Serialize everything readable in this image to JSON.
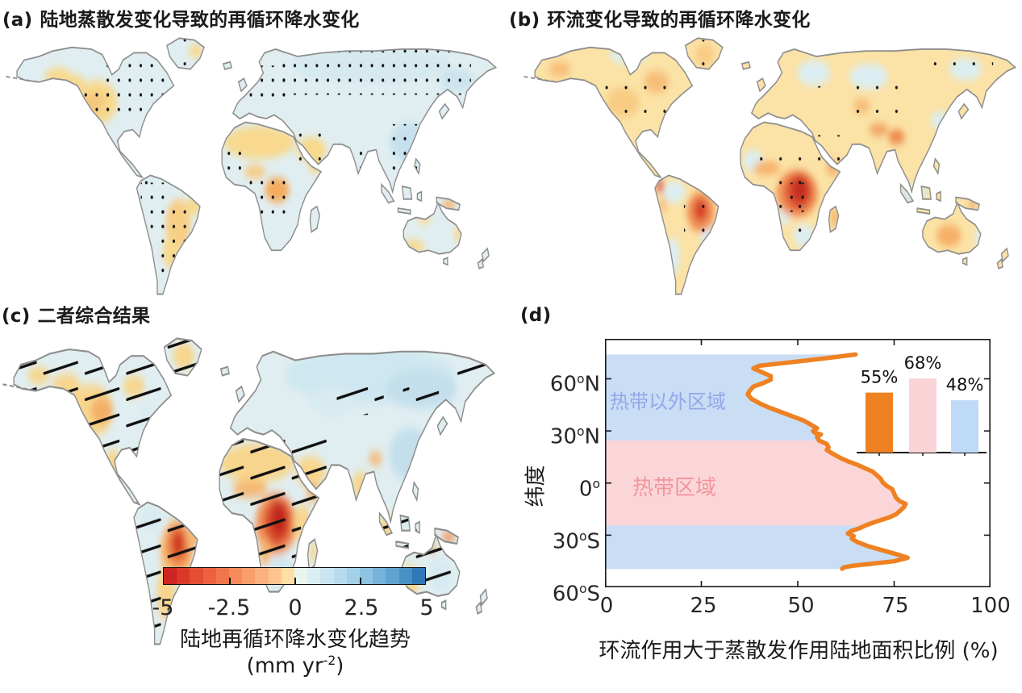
{
  "panels": {
    "a": {
      "label": "(a)",
      "title": "陆地蒸散发变化导致的再循环降水变化"
    },
    "b": {
      "label": "(b)",
      "title": "环流变化导致的再循环降水变化"
    },
    "c": {
      "label": "(c)",
      "title": "二者综合结果"
    },
    "d": {
      "label": "(d)"
    }
  },
  "colorbar": {
    "tick_labels": [
      "-5",
      "-2.5",
      "0",
      "2.5",
      "5"
    ],
    "title": "陆地再循环降水变化趋势",
    "units_prefix": "(mm yr",
    "units_sup": "-2",
    "units_suffix": ")"
  },
  "panel_d": {
    "ylabel": "纬度",
    "xlabel": "环流作用大于蒸散发作用陆地面积比例 (%)",
    "x_tick_labels": [
      "0",
      "25",
      "50",
      "75",
      "100"
    ],
    "y_tick_labels": [
      {
        "value": "60",
        "sup": "o",
        "hem": "N"
      },
      {
        "value": "30",
        "sup": "o",
        "hem": "N"
      },
      {
        "value": "0",
        "sup": "o",
        "hem": ""
      },
      {
        "value": "30",
        "sup": "o",
        "hem": "S"
      },
      {
        "value": "60",
        "sup": "o",
        "hem": "S"
      }
    ],
    "region_labels": {
      "extratropics": "热带以外区域",
      "tropics": "热带区域"
    },
    "bar_labels": [
      "55%",
      "68%",
      "48%"
    ]
  },
  "chart_data": [
    {
      "id": "land-recycled-precip-trend-colorbar",
      "type": "heatmap",
      "title": "陆地再循环降水变化趋势 (mm yr^-2)",
      "range": [
        -5,
        5
      ],
      "tick_values": [
        -5,
        -2.5,
        0,
        2.5,
        5
      ],
      "colors": [
        "#CD2522",
        "#DA392A",
        "#E44E32",
        "#EC623E",
        "#F1764B",
        "#F68A5B",
        "#F99D6C",
        "#FBB07E",
        "#FDC490",
        "#FEDFA6",
        "#EAF5EE",
        "#DAEEF4",
        "#C9E5F1",
        "#B7DBEE",
        "#A3D1E8",
        "#8EC4E1",
        "#77B4D9",
        "#60A3D0",
        "#488FC4",
        "#3078B6"
      ]
    },
    {
      "id": "circulation-vs-evap-latitude-profile",
      "type": "line",
      "xlabel": "环流作用大于蒸散发作用陆地面积比例 (%)",
      "ylabel": "纬度",
      "xlim": [
        0,
        100
      ],
      "x_ticks": [
        0,
        25,
        50,
        75,
        100
      ],
      "y_tick_lats": [
        60,
        30,
        0,
        -30,
        -60
      ],
      "lat_axis_range": [
        83,
        -60
      ],
      "line_color": "#EE8122",
      "points": [
        [
          65,
          74
        ],
        [
          56,
          71.5
        ],
        [
          46,
          69
        ],
        [
          40,
          67.5
        ],
        [
          38.5,
          66
        ],
        [
          40.5,
          64
        ],
        [
          43,
          61.5
        ],
        [
          43,
          59.5
        ],
        [
          41,
          57.5
        ],
        [
          38.5,
          55.5
        ],
        [
          37.5,
          53
        ],
        [
          37,
          51
        ],
        [
          38,
          48.5
        ],
        [
          40,
          46
        ],
        [
          42.5,
          43.5
        ],
        [
          45.5,
          41
        ],
        [
          48.5,
          38.5
        ],
        [
          51.5,
          36
        ],
        [
          53.5,
          33.5
        ],
        [
          55,
          31.5
        ],
        [
          54,
          30
        ],
        [
          54.5,
          28.8
        ],
        [
          56,
          28
        ],
        [
          55,
          26.5
        ],
        [
          55.5,
          24.5
        ],
        [
          57.5,
          22.5
        ],
        [
          58,
          20.5
        ],
        [
          57.5,
          19
        ],
        [
          59,
          17
        ],
        [
          61,
          14.5
        ],
        [
          63,
          12.5
        ],
        [
          65.5,
          10.5
        ],
        [
          67.5,
          8.5
        ],
        [
          69.5,
          6.5
        ],
        [
          70.5,
          4.5
        ],
        [
          71.5,
          2.5
        ],
        [
          72,
          0.5
        ],
        [
          73,
          -1.5
        ],
        [
          74.5,
          -3.5
        ],
        [
          75,
          -6
        ],
        [
          75.5,
          -8.5
        ],
        [
          76.5,
          -10.5
        ],
        [
          78,
          -12
        ],
        [
          77.5,
          -14
        ],
        [
          76.5,
          -16
        ],
        [
          75.5,
          -18
        ],
        [
          73.5,
          -20
        ],
        [
          70.5,
          -22
        ],
        [
          68,
          -24
        ],
        [
          66,
          -26
        ],
        [
          64,
          -27.5
        ],
        [
          63,
          -29
        ],
        [
          64.5,
          -30.5
        ],
        [
          64,
          -32
        ],
        [
          65.5,
          -34
        ],
        [
          68.5,
          -36.5
        ],
        [
          72.5,
          -39
        ],
        [
          76.5,
          -41.5
        ],
        [
          78.5,
          -43
        ],
        [
          75,
          -45
        ],
        [
          69,
          -46.5
        ],
        [
          64.5,
          -47.5
        ],
        [
          62,
          -48.5
        ],
        [
          61.5,
          -49.3
        ]
      ],
      "bands": [
        {
          "label": "热带以外区域",
          "lat_range": [
            24.5,
            74
          ],
          "color": "#C9DDF5",
          "label_color": "#93A7E8"
        },
        {
          "label": "热带区域",
          "lat_range": [
            -24.5,
            24.5
          ],
          "color": "#FBD6D8",
          "label_color": "#F2959C"
        },
        {
          "label": "",
          "lat_range": [
            -49.5,
            -24.5
          ],
          "color": "#C9DDF5",
          "label_color": ""
        }
      ]
    },
    {
      "id": "area-fraction-inset-bars",
      "type": "bar",
      "values": [
        55,
        68,
        48
      ],
      "labels": [
        "55%",
        "68%",
        "48%"
      ],
      "colors": [
        "#EE8122",
        "#F9D3D6",
        "#BFDAF6"
      ]
    }
  ]
}
